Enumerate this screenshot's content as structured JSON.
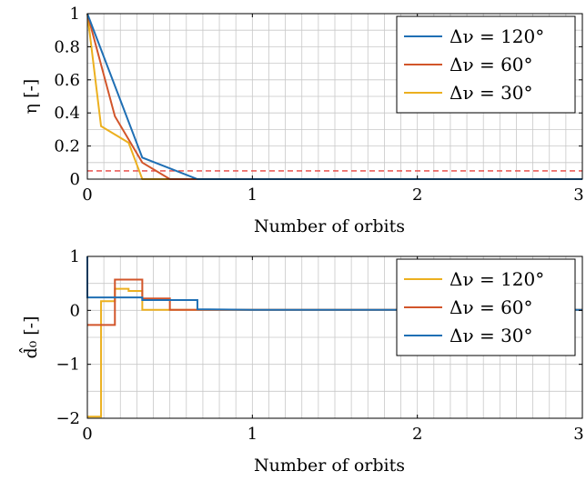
{
  "chart_data": [
    {
      "type": "line",
      "xlabel": "Number of orbits",
      "ylabel": "η [-]",
      "xlim": [
        0,
        3
      ],
      "ylim": [
        0,
        1
      ],
      "xticks": [
        "0",
        "1",
        "2",
        "3"
      ],
      "yticks": [
        "0",
        "0.2",
        "0.4",
        "0.6",
        "0.8",
        "1"
      ],
      "grid": true,
      "legend_position": "top-right",
      "threshold": {
        "y": 0.05,
        "style": "dashed",
        "color": "#e8413c"
      },
      "series": [
        {
          "name": "Δν = 120°",
          "color": "#1f6fb4",
          "x": [
            0,
            0.333,
            0.667,
            3
          ],
          "y": [
            1,
            0.13,
            0.0,
            0.0
          ]
        },
        {
          "name": "Δν = 60°",
          "color": "#d2552a",
          "x": [
            0,
            0.167,
            0.333,
            0.5,
            3
          ],
          "y": [
            1,
            0.38,
            0.1,
            0.0,
            0.0
          ]
        },
        {
          "name": "Δν = 30°",
          "color": "#ecb01f",
          "x": [
            0,
            0.083,
            0.25,
            0.333,
            3
          ],
          "y": [
            1,
            0.32,
            0.22,
            0.0,
            0.0
          ]
        }
      ]
    },
    {
      "type": "line",
      "xlabel": "Number of orbits",
      "ylabel": "d̂₀ [-]",
      "xlim": [
        0,
        3
      ],
      "ylim": [
        -2,
        1
      ],
      "xticks": [
        "0",
        "1",
        "2",
        "3"
      ],
      "yticks": [
        "−2",
        "−1",
        "0",
        "1"
      ],
      "grid": true,
      "legend_position": "top-right",
      "series": [
        {
          "name": "Δν = 120°",
          "color": "#ecb01f",
          "x": [
            0,
            0.083,
            0.083,
            0.167,
            0.167,
            0.25,
            0.25,
            0.333,
            0.333,
            3
          ],
          "y": [
            -1.97,
            -1.97,
            0.17,
            0.17,
            0.4,
            0.4,
            0.36,
            0.36,
            0.01,
            0.01
          ]
        },
        {
          "name": "Δν = 60°",
          "color": "#d2552a",
          "x": [
            0,
            0.167,
            0.167,
            0.333,
            0.333,
            0.5,
            0.5,
            3
          ],
          "y": [
            -0.27,
            -0.27,
            0.57,
            0.57,
            0.22,
            0.22,
            0.01,
            0.01
          ]
        },
        {
          "name": "Δν = 30°",
          "color": "#1f6fb4",
          "x": [
            0,
            0,
            0.333,
            0.333,
            0.667,
            0.667,
            1.0,
            1.5,
            2.0,
            2.5,
            3
          ],
          "y": [
            1.0,
            0.24,
            0.24,
            0.19,
            0.19,
            0.02,
            0.01,
            0.01,
            0.01,
            0.02,
            0.01
          ]
        }
      ]
    }
  ]
}
